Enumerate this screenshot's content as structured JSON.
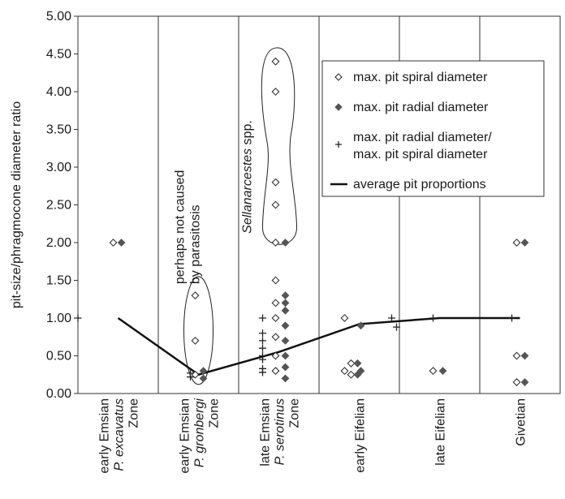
{
  "chart_data": {
    "type": "scatter",
    "ylabel": "pit-size/phragmocone diameter ratio",
    "ylim": [
      0,
      5
    ],
    "yticks": [
      "0.00",
      "0.50",
      "1.00",
      "1.50",
      "2.00",
      "2.50",
      "3.00",
      "3.50",
      "4.00",
      "4.50",
      "5.00"
    ],
    "grid": "vertical category separators and horizontal tick marks",
    "categories": [
      {
        "lines": [
          {
            "text": "early Emsian",
            "italic": false
          },
          {
            "text": "P. excavatus",
            "italic": true
          },
          {
            "text": "Zone",
            "italic": false
          }
        ]
      },
      {
        "lines": [
          {
            "text": "early Emsian",
            "italic": false
          },
          {
            "text": "P. gronbergi",
            "italic": true
          },
          {
            "text": "Zone",
            "italic": false
          }
        ]
      },
      {
        "lines": [
          {
            "text": "late Emsian",
            "italic": false
          },
          {
            "text": "P. serotinus",
            "italic": true
          },
          {
            "text": "Zone",
            "italic": false
          }
        ]
      },
      {
        "lines": [
          {
            "text": "early Eifelian",
            "italic": false
          }
        ]
      },
      {
        "lines": [
          {
            "text": "late Eifelian",
            "italic": false
          }
        ]
      },
      {
        "lines": [
          {
            "text": "Givetian",
            "italic": false
          }
        ]
      }
    ],
    "series": [
      {
        "name": "max. pit spiral diameter",
        "marker": "open-diamond",
        "points": [
          {
            "cat": 0,
            "y": 2.0
          },
          {
            "cat": 1,
            "y": 1.3
          },
          {
            "cat": 1,
            "y": 0.7
          },
          {
            "cat": 1,
            "y": 0.25
          },
          {
            "cat": 2,
            "y": 4.4
          },
          {
            "cat": 2,
            "y": 4.0
          },
          {
            "cat": 2,
            "y": 2.8
          },
          {
            "cat": 2,
            "y": 2.5
          },
          {
            "cat": 2,
            "y": 2.0
          },
          {
            "cat": 2,
            "y": 1.5
          },
          {
            "cat": 2,
            "y": 1.2
          },
          {
            "cat": 2,
            "y": 1.0
          },
          {
            "cat": 2,
            "y": 0.75
          },
          {
            "cat": 2,
            "y": 0.5
          },
          {
            "cat": 2,
            "y": 0.3
          },
          {
            "cat": 3,
            "y": 1.0
          },
          {
            "cat": 3,
            "y": 0.4
          },
          {
            "cat": 3,
            "y": 0.3
          },
          {
            "cat": 3,
            "y": 0.25
          },
          {
            "cat": 4,
            "y": 0.3
          },
          {
            "cat": 5,
            "y": 2.0
          },
          {
            "cat": 5,
            "y": 0.5
          },
          {
            "cat": 5,
            "y": 0.15
          }
        ]
      },
      {
        "name": "max. pit radial diameter",
        "marker": "filled-diamond",
        "points": [
          {
            "cat": 0,
            "y": 2.0
          },
          {
            "cat": 1,
            "y": 0.3
          },
          {
            "cat": 1,
            "y": 0.2
          },
          {
            "cat": 2,
            "y": 2.0
          },
          {
            "cat": 2,
            "y": 1.3
          },
          {
            "cat": 2,
            "y": 1.2
          },
          {
            "cat": 2,
            "y": 1.1
          },
          {
            "cat": 2,
            "y": 0.9
          },
          {
            "cat": 2,
            "y": 0.7
          },
          {
            "cat": 2,
            "y": 0.5
          },
          {
            "cat": 2,
            "y": 0.35
          },
          {
            "cat": 2,
            "y": 0.2
          },
          {
            "cat": 3,
            "y": 0.9
          },
          {
            "cat": 3,
            "y": 0.4
          },
          {
            "cat": 3,
            "y": 0.3
          },
          {
            "cat": 3,
            "y": 0.25
          },
          {
            "cat": 4,
            "y": 0.3
          },
          {
            "cat": 5,
            "y": 2.0
          },
          {
            "cat": 5,
            "y": 0.5
          },
          {
            "cat": 5,
            "y": 0.15
          }
        ]
      },
      {
        "name": "max. pit radial diameter/ max. pit spiral diameter",
        "marker": "plus",
        "points": [
          {
            "cat": 0,
            "y": 1.0
          },
          {
            "cat": 1,
            "y": 0.27
          },
          {
            "cat": 1,
            "y": 0.22
          },
          {
            "cat": 2,
            "y": 1.0
          },
          {
            "cat": 2,
            "y": 0.8
          },
          {
            "cat": 2,
            "y": 0.7
          },
          {
            "cat": 2,
            "y": 0.6
          },
          {
            "cat": 2,
            "y": 0.5
          },
          {
            "cat": 2,
            "y": 0.45
          },
          {
            "cat": 2,
            "y": 0.33
          },
          {
            "cat": 2,
            "y": 0.28
          },
          {
            "cat": 3,
            "y": 1.0
          },
          {
            "cat": 3,
            "y": 0.88
          },
          {
            "cat": 4,
            "y": 1.0
          },
          {
            "cat": 5,
            "y": 1.0
          }
        ]
      },
      {
        "name": "average pit proportions",
        "marker": "line",
        "points": [
          {
            "cat": 0,
            "y": 1.0
          },
          {
            "cat": 1,
            "y": 0.25
          },
          {
            "cat": 2,
            "y": 0.55
          },
          {
            "cat": 3,
            "y": 0.92
          },
          {
            "cat": 4,
            "y": 1.0
          },
          {
            "cat": 5,
            "y": 1.0
          }
        ]
      }
    ],
    "legend": {
      "placement": "top-right",
      "entries": [
        {
          "marker": "open-diamond",
          "lines": [
            "max. pit spiral diameter"
          ]
        },
        {
          "marker": "filled-diamond",
          "lines": [
            "max. pit radial diameter"
          ]
        },
        {
          "marker": "plus",
          "lines": [
            "max. pit radial diameter/",
            "max. pit spiral diameter"
          ]
        },
        {
          "marker": "line",
          "lines": [
            "average pit proportions"
          ]
        }
      ]
    },
    "annotations": [
      {
        "text_lines": [
          "perhaps not caused",
          "by parasitosis"
        ],
        "italic": false,
        "cat": 1
      },
      {
        "text_italic": "Sellanarcestes",
        "text_rest": " spp.",
        "cat": 2
      }
    ]
  }
}
